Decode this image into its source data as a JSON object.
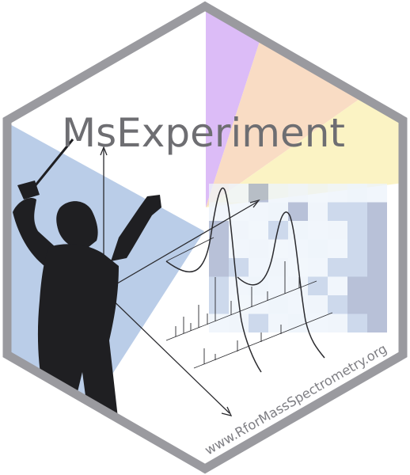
{
  "logo": {
    "title": "MsExperiment",
    "url": "www.RforMassSpectrometry.org"
  },
  "colors": {
    "border": "#9a9a9f",
    "title": "#6e6e72",
    "url": "#7f7f84",
    "blue_sector": "#b3c8e6",
    "purple_sector": "#dcbcf7",
    "orange_sector": "#f9dcc4",
    "yellow_sector": "#fbf3c4",
    "heatmap_light": "#eef4fb",
    "heatmap_mid": "#bccce6",
    "heatmap_dark": "#9aa6c8",
    "silhouette": "#1f1f22",
    "sketch": "#2a2a2e"
  },
  "icons": [
    "conductor-silhouette-icon",
    "mass-spectrum-sketch-icon",
    "heatmap-icon"
  ]
}
